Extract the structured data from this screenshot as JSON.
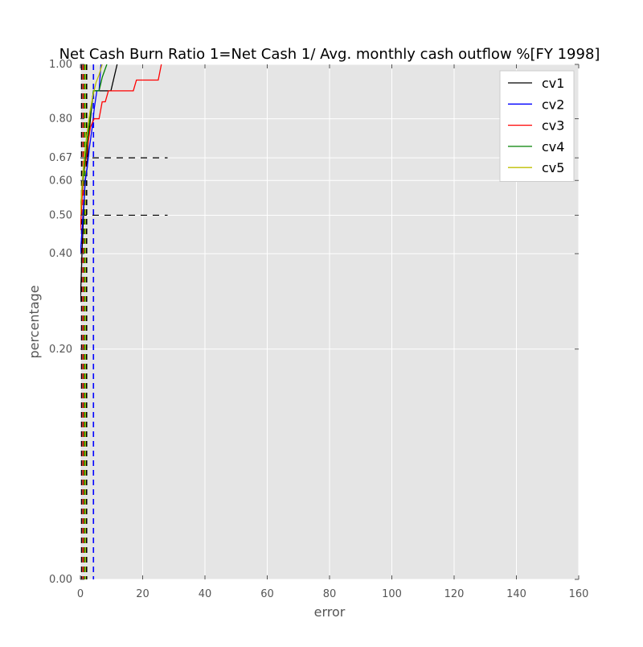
{
  "chart_data": {
    "type": "line",
    "title": "Net Cash Burn Ratio 1=Net Cash 1/ Avg. monthly cash outflow %[FY 1998]",
    "xlabel": "error",
    "ylabel": "percentage",
    "xlim": [
      0,
      160
    ],
    "ylim": [
      0,
      1
    ],
    "x_ticks": [
      0,
      20,
      40,
      60,
      80,
      100,
      120,
      140,
      160
    ],
    "x_tick_labels": [
      "0",
      "20",
      "40",
      "60",
      "80",
      "100",
      "120",
      "140",
      "160"
    ],
    "y_ticks": [
      0.0,
      0.2,
      0.4,
      0.5,
      0.6,
      0.67,
      0.8,
      1.0
    ],
    "y_tick_labels": [
      "0.00",
      "0.20",
      "0.40",
      "0.50",
      "0.60",
      "0.67",
      "0.80",
      "1.00"
    ],
    "y_scale": "sqrt",
    "grid": true,
    "background": "#e5e5e5",
    "legend_position": "top-right",
    "series": [
      {
        "name": "cv1",
        "color": "#000000",
        "x": [
          0,
          0.6,
          1.1,
          1.5,
          2.2,
          2.5,
          3.6,
          4.2,
          8.0,
          9.8,
          11.8
        ],
        "y": [
          0.29,
          0.42,
          0.52,
          0.6,
          0.64,
          0.72,
          0.84,
          0.9,
          0.9,
          0.9,
          1.0
        ]
      },
      {
        "name": "cv2",
        "color": "#0000ff",
        "x": [
          0,
          1.0,
          1.6,
          2.3,
          3.0,
          3.8,
          4.5,
          5.3,
          6.0,
          6.6
        ],
        "y": [
          0.4,
          0.52,
          0.6,
          0.65,
          0.71,
          0.77,
          0.84,
          0.9,
          0.9,
          1.0
        ]
      },
      {
        "name": "cv3",
        "color": "#ff0000",
        "x": [
          0,
          0.5,
          1.0,
          1.6,
          2.2,
          3.2,
          4.4,
          6.0,
          7.0,
          8.0,
          9.0,
          10.0,
          17.0,
          18.0,
          25.0,
          26.0
        ],
        "y": [
          0.46,
          0.54,
          0.62,
          0.65,
          0.7,
          0.77,
          0.8,
          0.8,
          0.86,
          0.86,
          0.9,
          0.9,
          0.9,
          0.94,
          0.94,
          1.0
        ]
      },
      {
        "name": "cv4",
        "color": "#008000",
        "x": [
          0,
          0.8,
          1.6,
          2.5,
          3.5,
          4.2,
          6.0,
          7.0,
          8.5
        ],
        "y": [
          0.52,
          0.6,
          0.67,
          0.75,
          0.84,
          0.9,
          0.9,
          0.95,
          1.0
        ]
      },
      {
        "name": "cv5",
        "color": "#bfbf00",
        "x": [
          0,
          0.5,
          1.2,
          2.0,
          3.0,
          4.0,
          5.0,
          6.0,
          7.0
        ],
        "y": [
          0.5,
          0.58,
          0.67,
          0.74,
          0.82,
          0.88,
          0.93,
          0.96,
          1.0
        ]
      }
    ],
    "reference_lines": [
      {
        "type": "horizontal",
        "y": 0.67,
        "x_range": [
          0,
          28
        ],
        "color": "#000000",
        "style": "dashed"
      },
      {
        "type": "horizontal",
        "y": 0.5,
        "x_range": [
          0,
          28
        ],
        "color": "#000000",
        "style": "dashed"
      },
      {
        "type": "vertical",
        "x": 4.2,
        "color": "#0000ff",
        "style": "dashed"
      },
      {
        "type": "vertical",
        "x": 0.4,
        "color": "#000000",
        "style": "dashed"
      },
      {
        "type": "vertical",
        "x": 0.9,
        "color": "#ff0000",
        "style": "dashed"
      },
      {
        "type": "vertical",
        "x": 1.3,
        "color": "#008000",
        "style": "dashed"
      },
      {
        "type": "vertical",
        "x": 1.7,
        "color": "#bfbf00",
        "style": "dashed"
      },
      {
        "type": "vertical",
        "x": 2.0,
        "color": "#000000",
        "style": "dashed"
      }
    ]
  }
}
